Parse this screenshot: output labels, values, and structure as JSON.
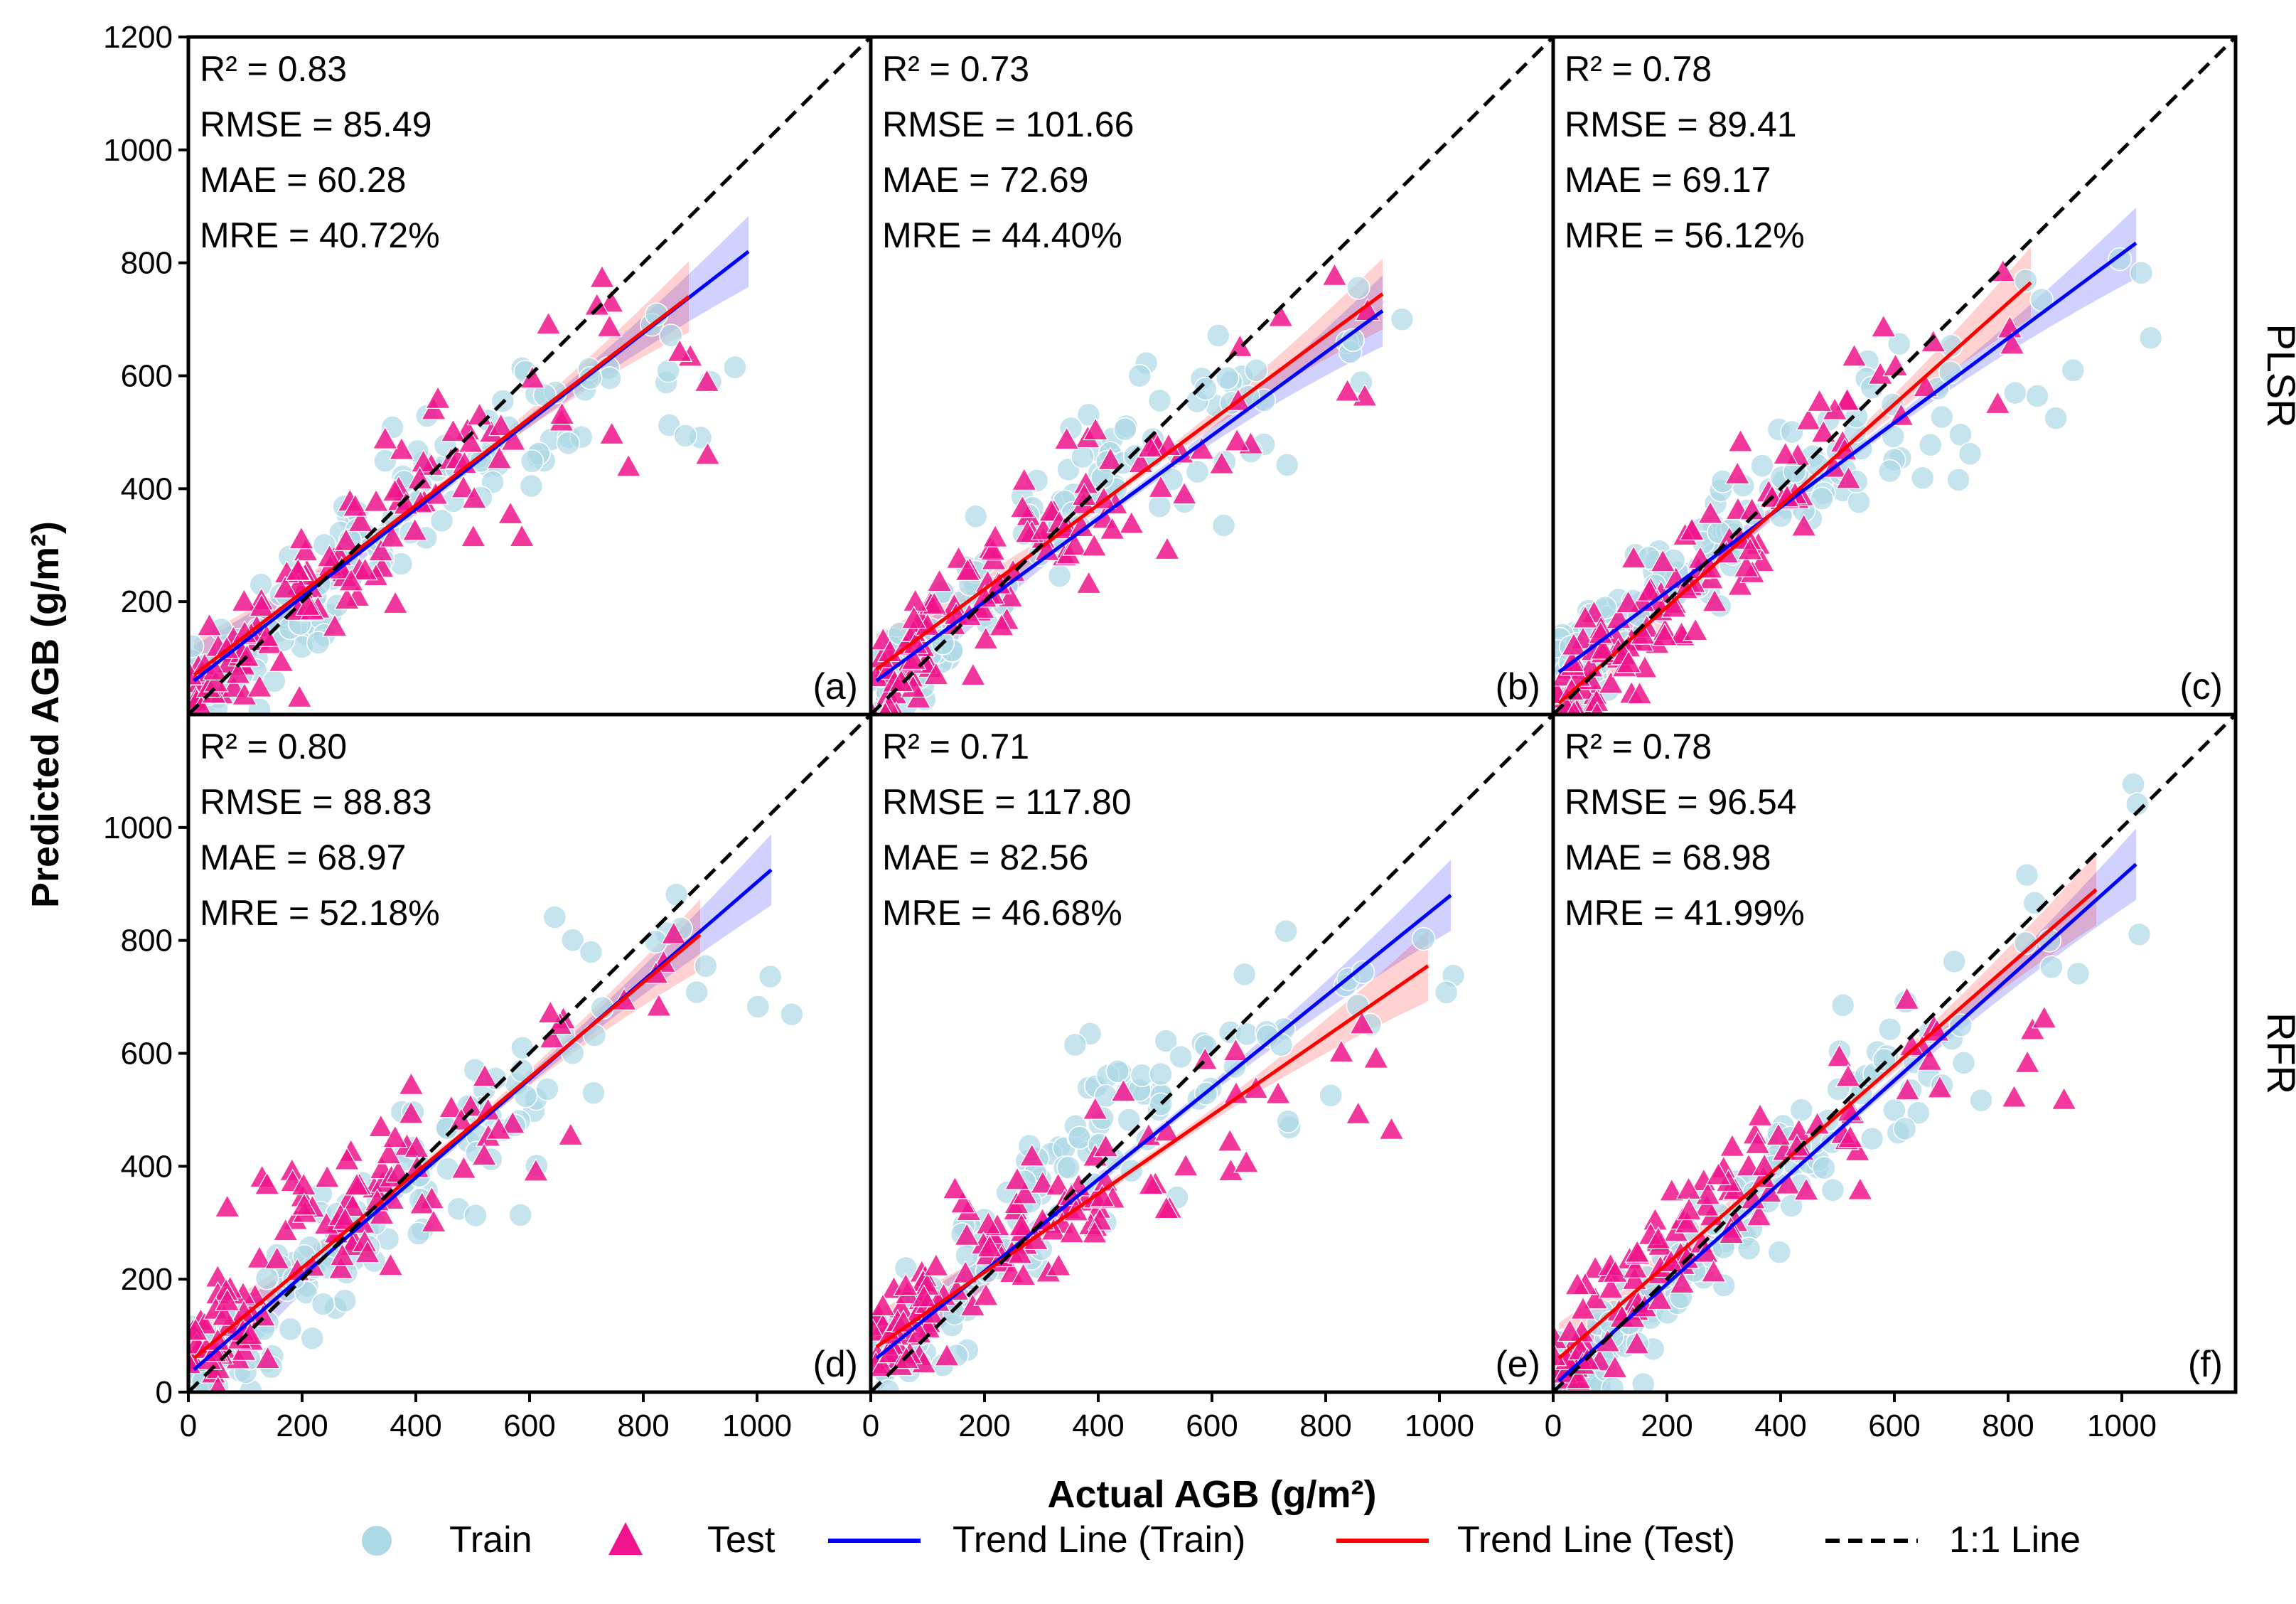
{
  "chart_data": {
    "type": "scatter",
    "xlabel": "Actual AGB (g/m²)",
    "ylabel": "Predicted AGB (g/m²)",
    "xlim": [
      0,
      1200
    ],
    "ylim": [
      0,
      1200
    ],
    "x_ticks": [
      "0",
      "200",
      "400",
      "600",
      "800",
      "1000"
    ],
    "y_ticks_top": [
      "200",
      "400",
      "600",
      "800",
      "1000",
      "1200"
    ],
    "y_ticks_bottom": [
      "0",
      "200",
      "400",
      "600",
      "800",
      "1000"
    ],
    "row_labels": [
      "PLSR",
      "RFR"
    ],
    "colors": {
      "train": "#add8e6",
      "test": "#f0148c",
      "trend_train": "#0000ff",
      "trend_test": "#ff0000",
      "one_to_one": "#000000"
    },
    "legend": {
      "position": "bottom-center",
      "entries": [
        "Train",
        "Test",
        "Trend Line (Train)",
        "Trend Line (Test)",
        "1:1 Line"
      ]
    },
    "panels": [
      {
        "label": "(a)",
        "row": 0,
        "col": 0,
        "stats": [
          "R²   = 0.83",
          "RMSE = 85.49",
          "MAE  = 60.28",
          "MRE  = 40.72%"
        ],
        "trend_train": {
          "x": [
            10,
            985
          ],
          "y": [
            60,
            820
          ]
        },
        "trend_test": {
          "x": [
            10,
            880
          ],
          "y": [
            70,
            740
          ]
        },
        "train_anchors": [
          [
            20,
            40,
            30
          ],
          [
            100,
            90,
            22
          ],
          [
            200,
            180,
            24
          ],
          [
            300,
            290,
            22
          ],
          [
            400,
            390,
            18
          ],
          [
            500,
            460,
            14
          ],
          [
            600,
            530,
            12
          ],
          [
            700,
            580,
            8
          ],
          [
            850,
            620,
            6
          ],
          [
            950,
            560,
            4
          ]
        ],
        "test_anchors": [
          [
            20,
            50,
            30
          ],
          [
            100,
            110,
            24
          ],
          [
            200,
            220,
            22
          ],
          [
            300,
            300,
            20
          ],
          [
            400,
            400,
            16
          ],
          [
            500,
            470,
            12
          ],
          [
            600,
            520,
            8
          ],
          [
            750,
            600,
            6
          ],
          [
            880,
            590,
            4
          ]
        ]
      },
      {
        "label": "(b)",
        "row": 0,
        "col": 1,
        "stats": [
          "R²   = 0.73",
          "RMSE = 101.66",
          "MAE  = 72.69",
          "MRE  = 44.40%"
        ],
        "trend_train": {
          "x": [
            10,
            900
          ],
          "y": [
            60,
            715
          ]
        },
        "trend_test": {
          "x": [
            10,
            900
          ],
          "y": [
            80,
            745
          ]
        },
        "train_anchors": [
          [
            30,
            40,
            30
          ],
          [
            100,
            110,
            22
          ],
          [
            200,
            220,
            22
          ],
          [
            300,
            320,
            20
          ],
          [
            400,
            420,
            18
          ],
          [
            500,
            480,
            14
          ],
          [
            600,
            500,
            10
          ],
          [
            700,
            520,
            8
          ],
          [
            850,
            640,
            6
          ]
        ],
        "test_anchors": [
          [
            30,
            60,
            30
          ],
          [
            100,
            140,
            24
          ],
          [
            200,
            230,
            22
          ],
          [
            300,
            310,
            18
          ],
          [
            400,
            400,
            14
          ],
          [
            500,
            440,
            10
          ],
          [
            650,
            540,
            6
          ],
          [
            850,
            680,
            4
          ]
        ]
      },
      {
        "label": "(c)",
        "row": 0,
        "col": 2,
        "stats": [
          "R²   = 0.78",
          "RMSE = 89.41",
          "MAE  = 69.17",
          "MRE  = 56.12%"
        ],
        "trend_train": {
          "x": [
            10,
            1025
          ],
          "y": [
            75,
            835
          ]
        },
        "trend_test": {
          "x": [
            10,
            840
          ],
          "y": [
            20,
            765
          ]
        },
        "train_anchors": [
          [
            30,
            80,
            30
          ],
          [
            100,
            150,
            22
          ],
          [
            200,
            240,
            22
          ],
          [
            300,
            320,
            20
          ],
          [
            400,
            400,
            18
          ],
          [
            500,
            470,
            14
          ],
          [
            600,
            520,
            12
          ],
          [
            700,
            570,
            8
          ],
          [
            850,
            650,
            6
          ],
          [
            1000,
            700,
            3
          ]
        ],
        "test_anchors": [
          [
            30,
            40,
            30
          ],
          [
            100,
            110,
            24
          ],
          [
            200,
            200,
            22
          ],
          [
            300,
            300,
            20
          ],
          [
            400,
            400,
            14
          ],
          [
            500,
            480,
            10
          ],
          [
            620,
            600,
            6
          ],
          [
            800,
            700,
            4
          ]
        ]
      },
      {
        "label": "(d)",
        "row": 1,
        "col": 0,
        "stats": [
          "R²   = 0.80",
          "RMSE = 88.83",
          "MAE  = 68.97",
          "MRE  = 52.18%"
        ],
        "trend_train": {
          "x": [
            10,
            1025
          ],
          "y": [
            40,
            925
          ]
        },
        "trend_test": {
          "x": [
            10,
            900
          ],
          "y": [
            60,
            810
          ]
        },
        "train_anchors": [
          [
            30,
            40,
            30
          ],
          [
            100,
            100,
            22
          ],
          [
            200,
            200,
            22
          ],
          [
            300,
            300,
            22
          ],
          [
            400,
            380,
            18
          ],
          [
            500,
            470,
            14
          ],
          [
            600,
            560,
            12
          ],
          [
            700,
            640,
            8
          ],
          [
            850,
            720,
            6
          ],
          [
            1000,
            800,
            3
          ]
        ],
        "test_anchors": [
          [
            30,
            60,
            30
          ],
          [
            100,
            120,
            24
          ],
          [
            200,
            320,
            22
          ],
          [
            300,
            320,
            20
          ],
          [
            400,
            400,
            14
          ],
          [
            500,
            480,
            10
          ],
          [
            650,
            580,
            6
          ],
          [
            850,
            720,
            5
          ]
        ]
      },
      {
        "label": "(e)",
        "row": 1,
        "col": 1,
        "stats": [
          "R²   = 0.71",
          "RMSE = 117.80",
          "MAE  = 82.56",
          "MRE  = 46.68%"
        ],
        "trend_train": {
          "x": [
            10,
            1020
          ],
          "y": [
            60,
            880
          ]
        },
        "trend_test": {
          "x": [
            10,
            980
          ],
          "y": [
            80,
            755
          ]
        },
        "train_anchors": [
          [
            30,
            60,
            30
          ],
          [
            100,
            130,
            22
          ],
          [
            200,
            250,
            22
          ],
          [
            300,
            380,
            20
          ],
          [
            400,
            460,
            18
          ],
          [
            500,
            530,
            14
          ],
          [
            600,
            560,
            10
          ],
          [
            700,
            580,
            8
          ],
          [
            850,
            650,
            6
          ],
          [
            1000,
            720,
            3
          ]
        ],
        "test_anchors": [
          [
            30,
            80,
            30
          ],
          [
            100,
            160,
            24
          ],
          [
            200,
            260,
            22
          ],
          [
            300,
            300,
            20
          ],
          [
            400,
            360,
            14
          ],
          [
            500,
            420,
            10
          ],
          [
            650,
            500,
            8
          ],
          [
            850,
            640,
            5
          ]
        ]
      },
      {
        "label": "(f)",
        "row": 1,
        "col": 2,
        "stats": [
          "R²   = 0.78",
          "RMSE = 96.54",
          "MAE  = 68.98",
          "MRE  = 41.99%"
        ],
        "trend_train": {
          "x": [
            10,
            1025
          ],
          "y": [
            20,
            935
          ]
        },
        "trend_test": {
          "x": [
            10,
            955
          ],
          "y": [
            60,
            890
          ]
        },
        "train_anchors": [
          [
            30,
            30,
            30
          ],
          [
            100,
            100,
            22
          ],
          [
            200,
            200,
            22
          ],
          [
            300,
            290,
            22
          ],
          [
            400,
            380,
            18
          ],
          [
            500,
            470,
            14
          ],
          [
            600,
            560,
            12
          ],
          [
            700,
            640,
            8
          ],
          [
            850,
            750,
            6
          ],
          [
            1000,
            870,
            3
          ]
        ],
        "test_anchors": [
          [
            30,
            60,
            30
          ],
          [
            100,
            160,
            24
          ],
          [
            200,
            260,
            22
          ],
          [
            300,
            330,
            20
          ],
          [
            400,
            420,
            14
          ],
          [
            500,
            500,
            10
          ],
          [
            650,
            600,
            8
          ],
          [
            850,
            700,
            5
          ]
        ]
      }
    ]
  }
}
